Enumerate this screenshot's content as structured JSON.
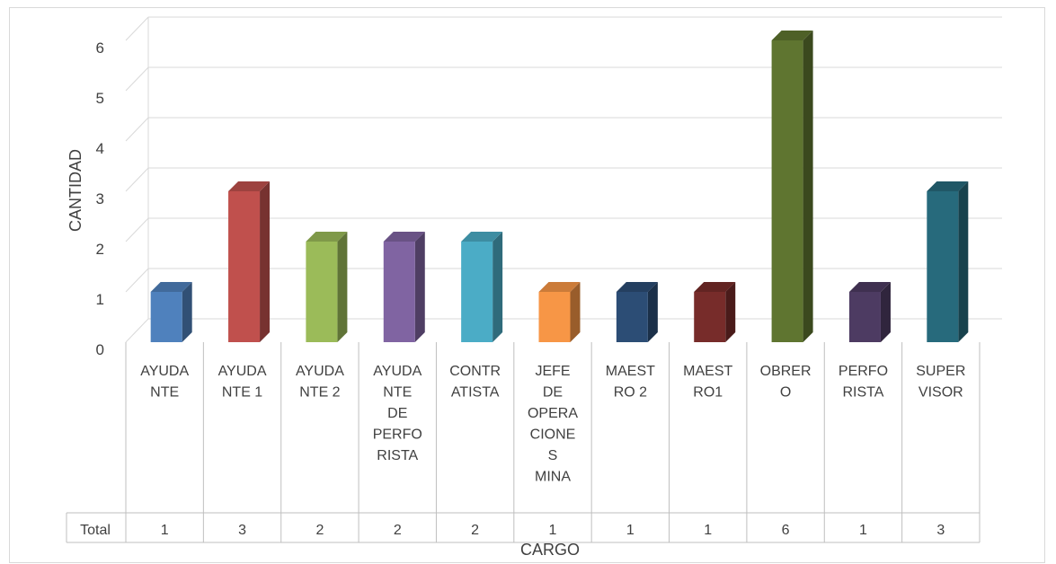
{
  "chart_data": {
    "type": "bar",
    "style": "3d-column-with-data-table",
    "categories": [
      [
        "AYUDA",
        "NTE"
      ],
      [
        "AYUDA",
        "NTE 1"
      ],
      [
        "AYUDA",
        "NTE 2"
      ],
      [
        "AYUDA",
        "NTE",
        "DE",
        "PERFO",
        "RISTA"
      ],
      [
        "CONTR",
        "ATISTA"
      ],
      [
        "JEFE",
        "DE",
        "OPERA",
        "CIONE",
        "S",
        "MINA"
      ],
      [
        "MAEST",
        "RO 2"
      ],
      [
        "MAEST",
        "RO1"
      ],
      [
        "OBRER",
        "O"
      ],
      [
        "PERFO",
        "RISTA"
      ],
      [
        "SUPER",
        "VISOR"
      ]
    ],
    "series": [
      {
        "name": "Total",
        "values": [
          1,
          3,
          2,
          2,
          2,
          1,
          1,
          1,
          6,
          1,
          3
        ]
      }
    ],
    "colors": [
      "#4f81bd",
      "#c0504d",
      "#9bbb59",
      "#8064a2",
      "#4bacc6",
      "#f79646",
      "#2c4d75",
      "#772c2a",
      "#5f7530",
      "#4d3b62",
      "#276a7c"
    ],
    "xlabel": "CARGO",
    "ylabel": "CANTIDAD",
    "ylim": [
      0,
      6
    ],
    "yticks": [
      "0",
      "1",
      "2",
      "3",
      "4",
      "5",
      "6"
    ],
    "grid": true,
    "legend": "none"
  }
}
